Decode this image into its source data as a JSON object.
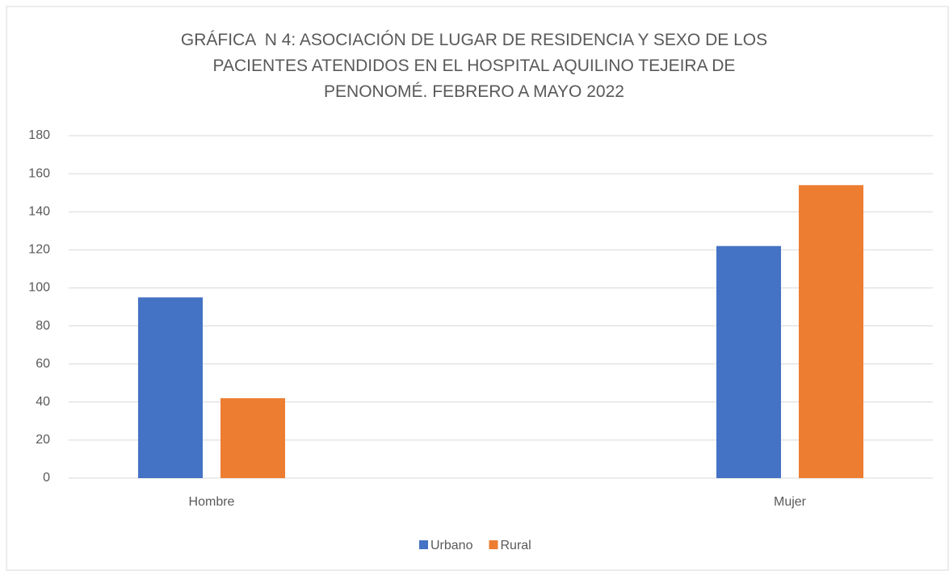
{
  "chart_data": {
    "type": "bar",
    "title": "GRÁFICA  N 4: ASOCIACIÓN DE LUGAR DE RESIDENCIA Y SEXO DE LOS PACIENTES ATENDIDOS EN EL HOSPITAL AQUILINO TEJEIRA DE PENONOMÉ. FEBRERO A MAYO 2022",
    "categories": [
      "Hombre",
      "Mujer"
    ],
    "series": [
      {
        "name": "Urbano",
        "color": "#4472c4",
        "values": [
          95,
          122
        ]
      },
      {
        "name": "Rural",
        "color": "#ed7d31",
        "values": [
          42,
          154
        ]
      }
    ],
    "ylim": [
      0,
      180
    ],
    "yticks": [
      0,
      20,
      40,
      60,
      80,
      100,
      120,
      140,
      160,
      180
    ],
    "grid": true,
    "legend": "bottom"
  }
}
